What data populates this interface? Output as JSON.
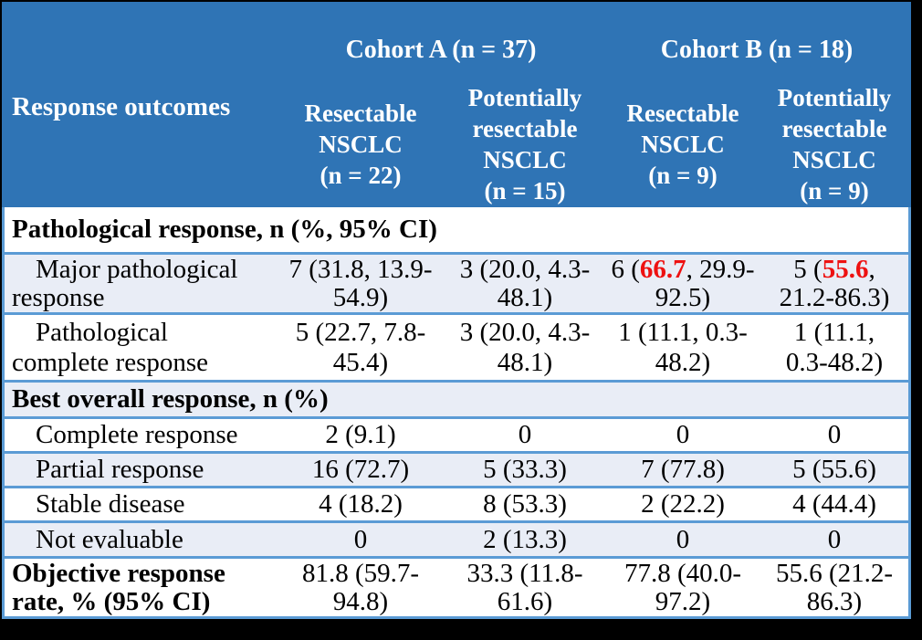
{
  "colors": {
    "header_blue": "#2F74B5",
    "row_border_blue": "#5B9BD5",
    "stripe_blue": "#E9EDF6",
    "highlight_red": "#EE1111",
    "frame_black": "#000000"
  },
  "table": {
    "cohorts": [
      {
        "label": "Cohort A (n = 37)"
      },
      {
        "label": "Cohort B (n = 18)"
      }
    ],
    "columns": {
      "rowheader": "Response outcomes",
      "col1": "Resectable\nNSCLC\n(n = 22)",
      "col2": "Potentially\nresectable\nNSCLC\n(n = 15)",
      "col3": "Resectable\nNSCLC\n(n = 9)",
      "col4": "Potentially\nresectable\nNSCLC\n(n = 9)"
    },
    "rows": [
      {
        "type": "section",
        "label": "Pathological response, n (%, 95% CI)"
      },
      {
        "type": "data",
        "label": "Major pathological\nresponse",
        "cells": [
          "7 (31.8, 13.9-\n54.9)",
          "3 (20.0, 4.3-\n48.1)",
          {
            "pre": "6 (",
            "red": "66.7",
            "post": ", 29.9-\n92.5)"
          },
          {
            "pre": "5 (",
            "red": "55.6",
            "post": ",\n21.2-86.3)"
          }
        ]
      },
      {
        "type": "data",
        "label": "Pathological\ncomplete response",
        "cells": [
          "5 (22.7, 7.8-\n45.4)",
          "3 (20.0, 4.3-\n48.1)",
          "1 (11.1, 0.3-\n48.2)",
          "1 (11.1,\n0.3-48.2)"
        ]
      },
      {
        "type": "section",
        "label": "Best overall response, n (%)"
      },
      {
        "type": "data",
        "label": "Complete response",
        "cells": [
          "2 (9.1)",
          "0",
          "0",
          "0"
        ]
      },
      {
        "type": "data",
        "label": "Partial response",
        "cells": [
          "16 (72.7)",
          "5 (33.3)",
          "7 (77.8)",
          "5 (55.6)"
        ]
      },
      {
        "type": "data",
        "label": "Stable disease",
        "cells": [
          "4 (18.2)",
          "8 (53.3)",
          "2 (22.2)",
          "4 (44.4)"
        ]
      },
      {
        "type": "data",
        "label": "Not evaluable",
        "cells": [
          "0",
          "2 (13.3)",
          "0",
          "0"
        ]
      },
      {
        "type": "data-bold",
        "label": "Objective response\nrate, % (95% CI)",
        "cells": [
          "81.8 (59.7-\n94.8)",
          "33.3 (11.8-\n61.6)",
          "77.8 (40.0-\n97.2)",
          "55.6 (21.2-\n86.3)"
        ]
      }
    ]
  }
}
